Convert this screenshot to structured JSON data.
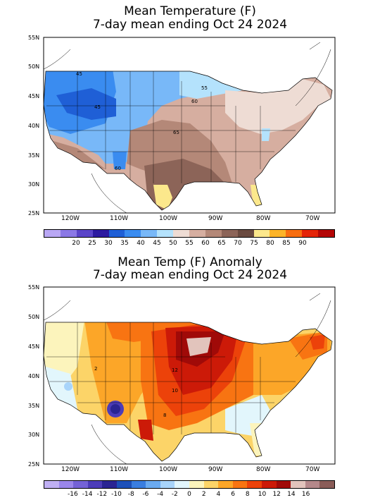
{
  "panel1": {
    "title_line1": "Mean Temperature (F)",
    "title_line2": "7-day mean ending Oct 24 2024",
    "lat_labels": [
      "55N",
      "50N",
      "45N",
      "40N",
      "35N",
      "30N",
      "25N"
    ],
    "lon_labels": [
      "120W",
      "110W",
      "100W",
      "90W",
      "80W",
      "70W"
    ],
    "contour_labels": [
      "45",
      "45",
      "55",
      "60",
      "65",
      "60"
    ],
    "colorbar": {
      "colors": [
        "#b9a7f4",
        "#8b78e6",
        "#5a44c8",
        "#2d1aa0",
        "#1f5fd6",
        "#3a8cf0",
        "#78b8f8",
        "#b4e2fc",
        "#eedcd4",
        "#d6aea0",
        "#b48878",
        "#8c6458",
        "#6a4a40",
        "#fce88c",
        "#fcb428",
        "#f86e10",
        "#e42408",
        "#b40606"
      ],
      "ticks": [
        "20",
        "25",
        "30",
        "35",
        "40",
        "45",
        "50",
        "55",
        "60",
        "65",
        "70",
        "75",
        "80",
        "85",
        "90"
      ]
    }
  },
  "panel2": {
    "title_line1": "Mean Temp (F) Anomaly",
    "title_line2": "7-day mean ending Oct 24 2024",
    "lat_labels": [
      "55N",
      "50N",
      "45N",
      "40N",
      "35N",
      "30N",
      "25N"
    ],
    "lon_labels": [
      "120W",
      "110W",
      "100W",
      "90W",
      "80W",
      "70W"
    ],
    "contour_labels": [
      "12",
      "10",
      "8",
      "2"
    ],
    "colorbar": {
      "colors": [
        "#c0b0f4",
        "#9a86ea",
        "#7462d6",
        "#4c3cb8",
        "#2a2492",
        "#1d50b8",
        "#3a7ee0",
        "#6aaaf0",
        "#a8d4fa",
        "#e2f6fc",
        "#fcf4bc",
        "#fcd468",
        "#fca628",
        "#f87412",
        "#ec420a",
        "#cc1a08",
        "#a00a08",
        "#e2c4bc",
        "#b4888a",
        "#8a5c58"
      ],
      "ticks": [
        "-16",
        "-14",
        "-12",
        "-10",
        "-8",
        "-6",
        "-4",
        "-2",
        "0",
        "2",
        "4",
        "6",
        "8",
        "10",
        "12",
        "14",
        "16"
      ]
    }
  }
}
